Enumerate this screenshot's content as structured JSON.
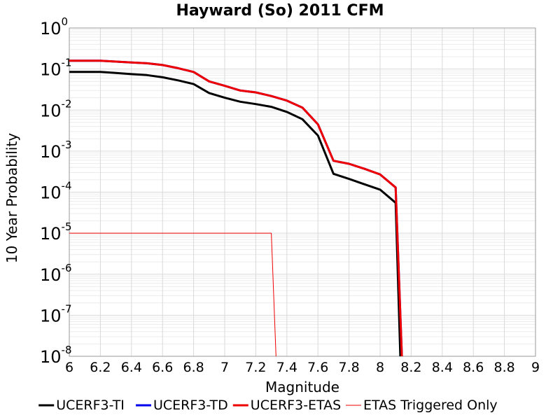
{
  "chart_data": {
    "type": "line",
    "title": "Hayward (So) 2011 CFM",
    "xlabel": "Magnitude",
    "ylabel": "10 Year Probability",
    "xlim": [
      6,
      9
    ],
    "ylim": [
      1e-08,
      1
    ],
    "yscale": "log",
    "grid": true,
    "legend_position": "bottom",
    "x_ticks": [
      "6",
      "6.2",
      "6.4",
      "6.6",
      "6.8",
      "7",
      "7.2",
      "7.4",
      "7.6",
      "7.8",
      "8",
      "8.2",
      "8.4",
      "8.6",
      "8.8",
      "9"
    ],
    "y_ticks": [
      {
        "base": "10",
        "exp": "0",
        "value": 1
      },
      {
        "base": "10",
        "exp": "-1",
        "value": 0.1
      },
      {
        "base": "10",
        "exp": "-2",
        "value": 0.01
      },
      {
        "base": "10",
        "exp": "-3",
        "value": 0.001
      },
      {
        "base": "10",
        "exp": "-4",
        "value": 0.0001
      },
      {
        "base": "10",
        "exp": "-5",
        "value": 1e-05
      },
      {
        "base": "10",
        "exp": "-6",
        "value": 1e-06
      },
      {
        "base": "10",
        "exp": "-7",
        "value": 1e-07
      },
      {
        "base": "10",
        "exp": "-8",
        "value": 1e-08
      }
    ],
    "series": [
      {
        "name": "UCERF3-TI",
        "color": "#000000",
        "width": 3,
        "x": [
          6.0,
          6.1,
          6.2,
          6.3,
          6.4,
          6.5,
          6.6,
          6.7,
          6.8,
          6.9,
          7.0,
          7.1,
          7.2,
          7.3,
          7.4,
          7.5,
          7.6,
          7.7,
          7.8,
          7.9,
          8.0,
          8.1,
          8.13
        ],
        "y": [
          0.085,
          0.085,
          0.085,
          0.08,
          0.075,
          0.071,
          0.063,
          0.053,
          0.043,
          0.026,
          0.02,
          0.016,
          0.014,
          0.012,
          0.009,
          0.006,
          0.0024,
          0.00028,
          0.00021,
          0.000155,
          0.000115,
          5.5e-05,
          1e-08
        ]
      },
      {
        "name": "UCERF3-TD",
        "color": "#0000ee",
        "width": 3,
        "x": [
          6.0,
          6.1,
          6.2,
          6.3,
          6.4,
          6.5,
          6.6,
          6.7,
          6.8,
          6.9,
          7.0,
          7.1,
          7.2,
          7.3,
          7.4,
          7.5,
          7.6,
          7.7,
          7.8,
          7.9,
          8.0,
          8.1,
          8.14
        ],
        "y": [
          0.16,
          0.16,
          0.16,
          0.152,
          0.145,
          0.138,
          0.125,
          0.105,
          0.085,
          0.05,
          0.039,
          0.03,
          0.027,
          0.022,
          0.017,
          0.0115,
          0.0045,
          0.00058,
          0.00049,
          0.00037,
          0.00027,
          0.00013,
          1e-08
        ]
      },
      {
        "name": "UCERF3-ETAS",
        "color": "#ee0000",
        "width": 3,
        "x": [
          6.0,
          6.1,
          6.2,
          6.3,
          6.4,
          6.5,
          6.6,
          6.7,
          6.8,
          6.9,
          7.0,
          7.1,
          7.2,
          7.3,
          7.4,
          7.5,
          7.6,
          7.7,
          7.8,
          7.9,
          8.0,
          8.1,
          8.14
        ],
        "y": [
          0.16,
          0.16,
          0.16,
          0.152,
          0.145,
          0.138,
          0.125,
          0.105,
          0.085,
          0.05,
          0.039,
          0.03,
          0.027,
          0.022,
          0.017,
          0.0115,
          0.0045,
          0.00058,
          0.00049,
          0.00037,
          0.00027,
          0.00013,
          1e-08
        ]
      },
      {
        "name": "ETAS Triggered Only",
        "color": "#ee0000",
        "width": 1,
        "x": [
          6.0,
          7.3,
          7.33
        ],
        "y": [
          1e-05,
          1e-05,
          1e-08
        ]
      }
    ]
  }
}
